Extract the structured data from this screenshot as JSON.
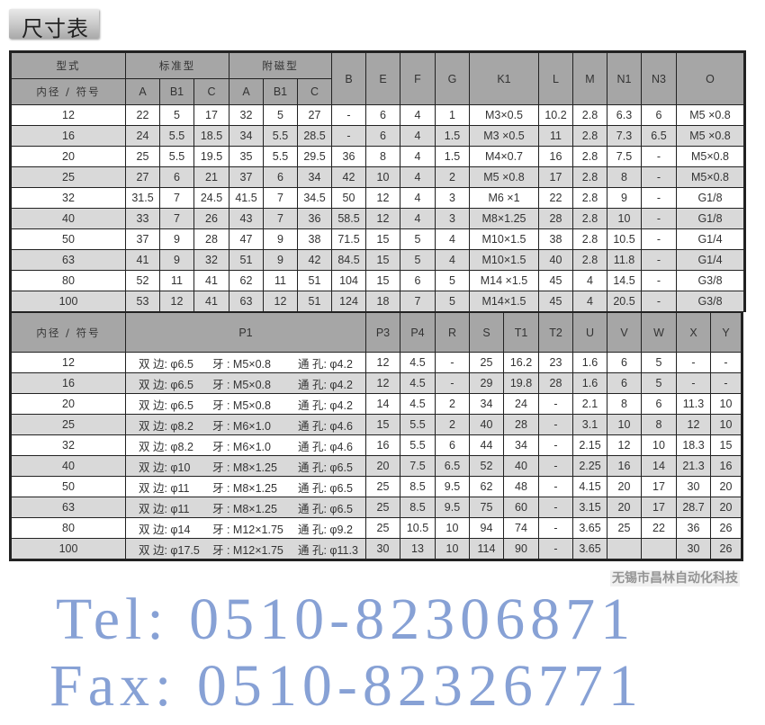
{
  "title": "尺寸表",
  "top_table": {
    "group_header": {
      "type": "型式",
      "standard": "标准型",
      "magnetic": "附磁型"
    },
    "bore_label": "内径 / 符号",
    "standard_cols": [
      "A",
      "B1",
      "C"
    ],
    "magnetic_cols": [
      "A",
      "B1",
      "C"
    ],
    "other_cols": [
      "B",
      "E",
      "F",
      "G",
      "K1",
      "L",
      "M",
      "N1",
      "N3",
      "O"
    ],
    "rows": [
      [
        "12",
        "22",
        "5",
        "17",
        "32",
        "5",
        "27",
        "-",
        "6",
        "4",
        "1",
        "M3×0.5",
        "10.2",
        "2.8",
        "6.3",
        "6",
        "M5 ×0.8"
      ],
      [
        "16",
        "24",
        "5.5",
        "18.5",
        "34",
        "5.5",
        "28.5",
        "-",
        "6",
        "4",
        "1.5",
        "M3 ×0.5",
        "11",
        "2.8",
        "7.3",
        "6.5",
        "M5 ×0.8"
      ],
      [
        "20",
        "25",
        "5.5",
        "19.5",
        "35",
        "5.5",
        "29.5",
        "36",
        "8",
        "4",
        "1.5",
        "M4×0.7",
        "16",
        "2.8",
        "7.5",
        "-",
        "M5×0.8"
      ],
      [
        "25",
        "27",
        "6",
        "21",
        "37",
        "6",
        "34",
        "42",
        "10",
        "4",
        "2",
        "M5 ×0.8",
        "17",
        "2.8",
        "8",
        "-",
        "M5×0.8"
      ],
      [
        "32",
        "31.5",
        "7",
        "24.5",
        "41.5",
        "7",
        "34.5",
        "50",
        "12",
        "4",
        "3",
        "M6 ×1",
        "22",
        "2.8",
        "9",
        "-",
        "G1/8"
      ],
      [
        "40",
        "33",
        "7",
        "26",
        "43",
        "7",
        "36",
        "58.5",
        "12",
        "4",
        "3",
        "M8×1.25",
        "28",
        "2.8",
        "10",
        "-",
        "G1/8"
      ],
      [
        "50",
        "37",
        "9",
        "28",
        "47",
        "9",
        "38",
        "71.5",
        "15",
        "5",
        "4",
        "M10×1.5",
        "38",
        "2.8",
        "10.5",
        "-",
        "G1/4"
      ],
      [
        "63",
        "41",
        "9",
        "32",
        "51",
        "9",
        "42",
        "84.5",
        "15",
        "5",
        "4",
        "M10×1.5",
        "40",
        "2.8",
        "11.8",
        "-",
        "G1/4"
      ],
      [
        "80",
        "52",
        "11",
        "41",
        "62",
        "11",
        "51",
        "104",
        "15",
        "6",
        "5",
        "M14 ×1.5",
        "45",
        "4",
        "14.5",
        "-",
        "G3/8"
      ],
      [
        "100",
        "53",
        "12",
        "41",
        "63",
        "12",
        "51",
        "124",
        "18",
        "7",
        "5",
        "M14×1.5",
        "45",
        "4",
        "20.5",
        "-",
        "G3/8"
      ]
    ]
  },
  "bottom_table": {
    "bore_label": "内径 / 符号",
    "cols": [
      "P1",
      "P3",
      "P4",
      "R",
      "S",
      "T1",
      "T2",
      "U",
      "V",
      "W",
      "X",
      "Y"
    ],
    "rows": [
      {
        "bore": "12",
        "p1": [
          "双 边: φ6.5",
          "牙 : M5×0.8",
          "通 孔: φ4.2"
        ],
        "vals": [
          "12",
          "4.5",
          "-",
          "25",
          "16.2",
          "23",
          "1.6",
          "6",
          "5",
          "-",
          "-"
        ]
      },
      {
        "bore": "16",
        "p1": [
          "双 边: φ6.5",
          "牙 : M5×0.8",
          "通 孔: φ4.2"
        ],
        "vals": [
          "12",
          "4.5",
          "-",
          "29",
          "19.8",
          "28",
          "1.6",
          "6",
          "5",
          "-",
          "-"
        ]
      },
      {
        "bore": "20",
        "p1": [
          "双 边: φ6.5",
          "牙 : M5×0.8",
          "通 孔: φ4.2"
        ],
        "vals": [
          "14",
          "4.5",
          "2",
          "34",
          "24",
          "-",
          "2.1",
          "8",
          "6",
          "11.3",
          "10"
        ]
      },
      {
        "bore": "25",
        "p1": [
          "双 边: φ8.2",
          "牙 : M6×1.0",
          "通 孔: φ4.6"
        ],
        "vals": [
          "15",
          "5.5",
          "2",
          "40",
          "28",
          "-",
          "3.1",
          "10",
          "8",
          "12",
          "10"
        ]
      },
      {
        "bore": "32",
        "p1": [
          "双 边: φ8.2",
          "牙 : M6×1.0",
          "通 孔: φ4.6"
        ],
        "vals": [
          "16",
          "5.5",
          "6",
          "44",
          "34",
          "-",
          "2.15",
          "12",
          "10",
          "18.3",
          "15"
        ]
      },
      {
        "bore": "40",
        "p1": [
          "双 边: φ10",
          "牙 : M8×1.25",
          "通 孔: φ6.5"
        ],
        "vals": [
          "20",
          "7.5",
          "6.5",
          "52",
          "40",
          "-",
          "2.25",
          "16",
          "14",
          "21.3",
          "16"
        ]
      },
      {
        "bore": "50",
        "p1": [
          "双 边: φ11",
          "牙 : M8×1.25",
          "通 孔: φ6.5"
        ],
        "vals": [
          "25",
          "8.5",
          "9.5",
          "62",
          "48",
          "-",
          "4.15",
          "20",
          "17",
          "30",
          "20"
        ]
      },
      {
        "bore": "63",
        "p1": [
          "双 边: φ11",
          "牙 : M8×1.25",
          "通 孔: φ6.5"
        ],
        "vals": [
          "25",
          "8.5",
          "9.5",
          "75",
          "60",
          "-",
          "3.15",
          "20",
          "17",
          "28.7",
          "20"
        ]
      },
      {
        "bore": "80",
        "p1": [
          "双 边: φ14",
          "牙 : M12×1.75",
          "通 孔: φ9.2"
        ],
        "vals": [
          "25",
          "10.5",
          "10",
          "94",
          "74",
          "-",
          "3.65",
          "25",
          "22",
          "36",
          "26"
        ]
      },
      {
        "bore": "100",
        "p1": [
          "双 边: φ17.5",
          "牙 : M12×1.75",
          "通 孔: φ11.3"
        ],
        "vals": [
          "30",
          "13",
          "10",
          "114",
          "90",
          "-",
          "3.65",
          "",
          "",
          "30",
          "26"
        ]
      }
    ]
  },
  "watermarks": {
    "tel": "Tel: 0510-82306871",
    "fax": "Fax: 0510-82326771",
    "company": "无锡市昌林自动化科技"
  }
}
